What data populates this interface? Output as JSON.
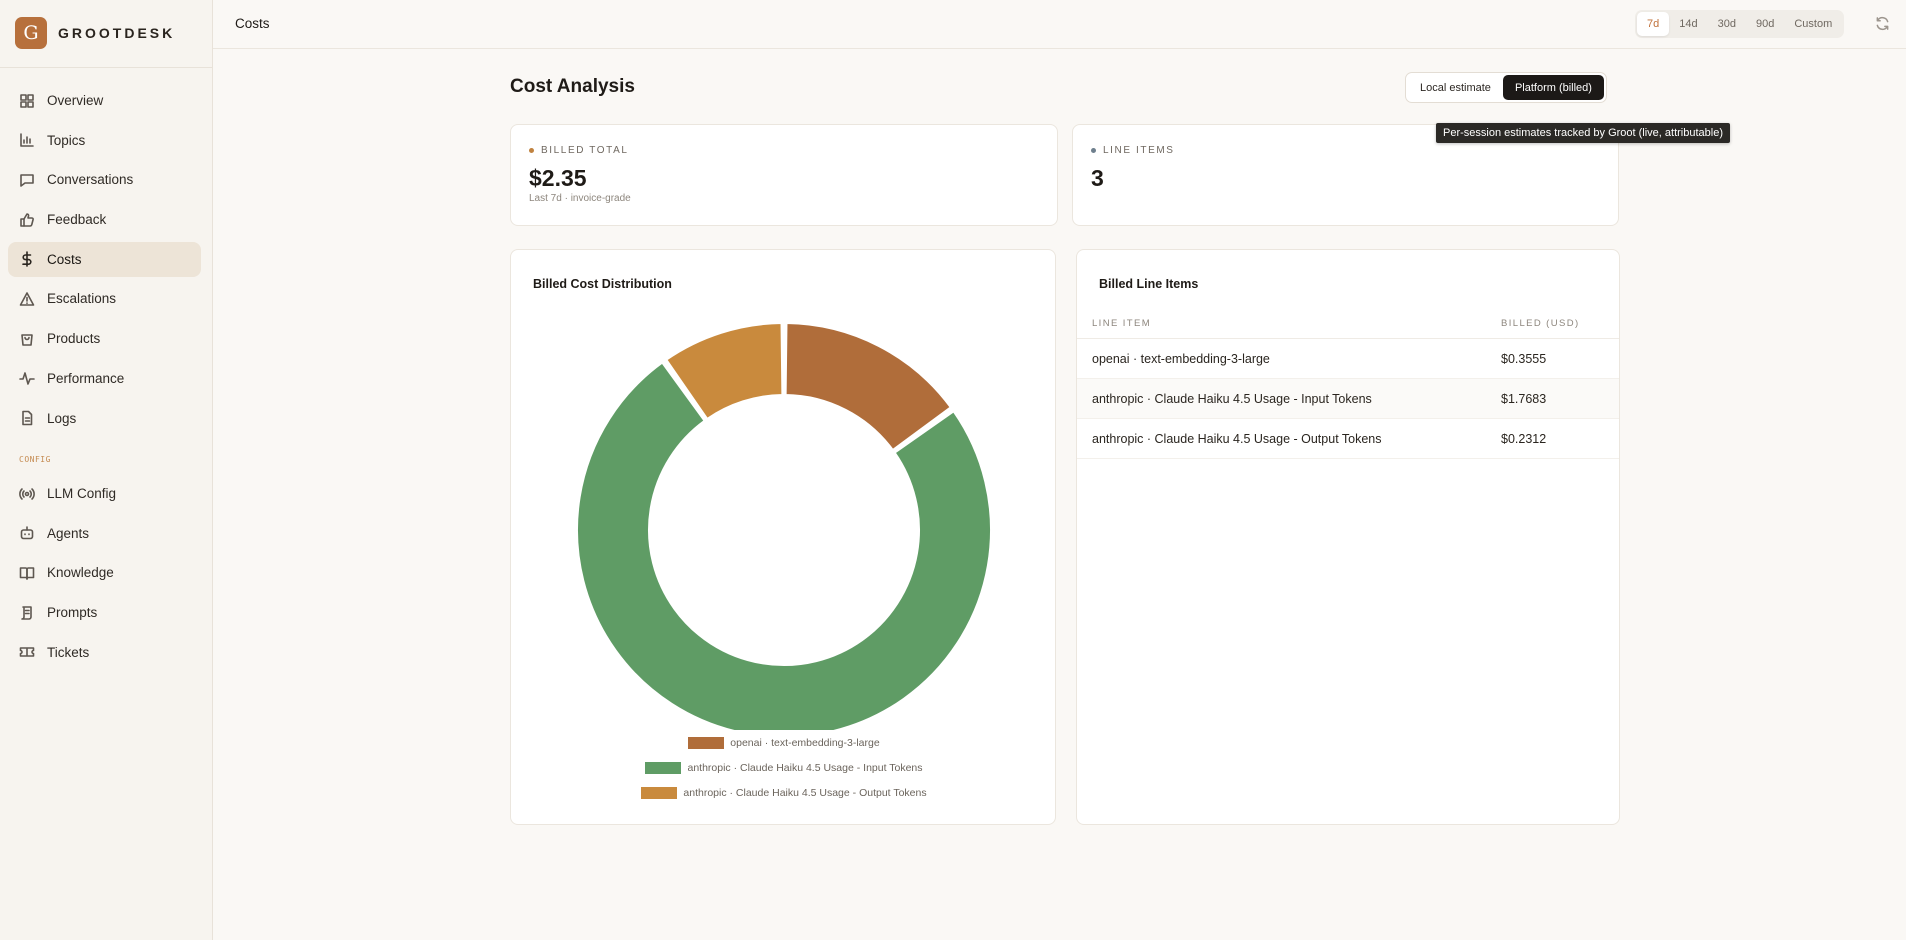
{
  "brand": {
    "letter": "G",
    "name": "GROOTDESK"
  },
  "sidebar": {
    "items": [
      {
        "label": "Overview",
        "icon": "grid-icon"
      },
      {
        "label": "Topics",
        "icon": "bar-chart-icon"
      },
      {
        "label": "Conversations",
        "icon": "chat-icon"
      },
      {
        "label": "Feedback",
        "icon": "thumbs-up-icon"
      },
      {
        "label": "Costs",
        "icon": "dollar-icon",
        "active": true
      },
      {
        "label": "Escalations",
        "icon": "warning-icon"
      },
      {
        "label": "Products",
        "icon": "bag-icon"
      },
      {
        "label": "Performance",
        "icon": "activity-icon"
      },
      {
        "label": "Logs",
        "icon": "document-icon"
      }
    ],
    "section_label": "CONFIG",
    "config_items": [
      {
        "label": "LLM Config",
        "icon": "broadcast-icon"
      },
      {
        "label": "Agents",
        "icon": "bot-icon"
      },
      {
        "label": "Knowledge",
        "icon": "book-icon"
      },
      {
        "label": "Prompts",
        "icon": "scroll-icon"
      },
      {
        "label": "Tickets",
        "icon": "ticket-icon"
      }
    ]
  },
  "header": {
    "title": "Costs",
    "ranges": [
      "7d",
      "14d",
      "30d",
      "90d",
      "Custom"
    ],
    "active_range": "7d",
    "refresh_icon": "refresh-icon"
  },
  "main": {
    "title": "Cost Analysis",
    "toggle": {
      "options": [
        "Local estimate",
        "Platform (billed)"
      ],
      "active": "Platform (billed)"
    },
    "tooltip": "Per-session estimates tracked by Groot (live, attributable)",
    "stats": [
      {
        "label": "BILLED TOTAL",
        "value": "$2.35",
        "sub": "Last 7d · invoice-grade",
        "dot_color": "#c0823f"
      },
      {
        "label": "LINE ITEMS",
        "value": "3",
        "sub": "",
        "dot_color": "#6e7f8d"
      }
    ],
    "distribution_title": "Billed Cost Distribution",
    "table": {
      "title": "Billed Line Items",
      "columns": [
        "LINE ITEM",
        "BILLED (USD)"
      ],
      "rows": [
        {
          "item": "openai · text-embedding-3-large",
          "billed": "$0.3555"
        },
        {
          "item": "anthropic · Claude Haiku 4.5 Usage - Input Tokens",
          "billed": "$1.7683"
        },
        {
          "item": "anthropic · Claude Haiku 4.5 Usage - Output Tokens",
          "billed": "$0.2312"
        }
      ]
    }
  },
  "chart_data": {
    "type": "pie",
    "variant": "donut",
    "title": "Billed Cost Distribution",
    "categories": [
      "openai · text-embedding-3-large",
      "anthropic · Claude Haiku 4.5 Usage - Input Tokens",
      "anthropic · Claude Haiku 4.5 Usage - Output Tokens"
    ],
    "values": [
      0.3555,
      1.7683,
      0.2312
    ],
    "colors": [
      "#b06d3a",
      "#5f9c65",
      "#c98a3d"
    ],
    "legend": "bottom"
  }
}
